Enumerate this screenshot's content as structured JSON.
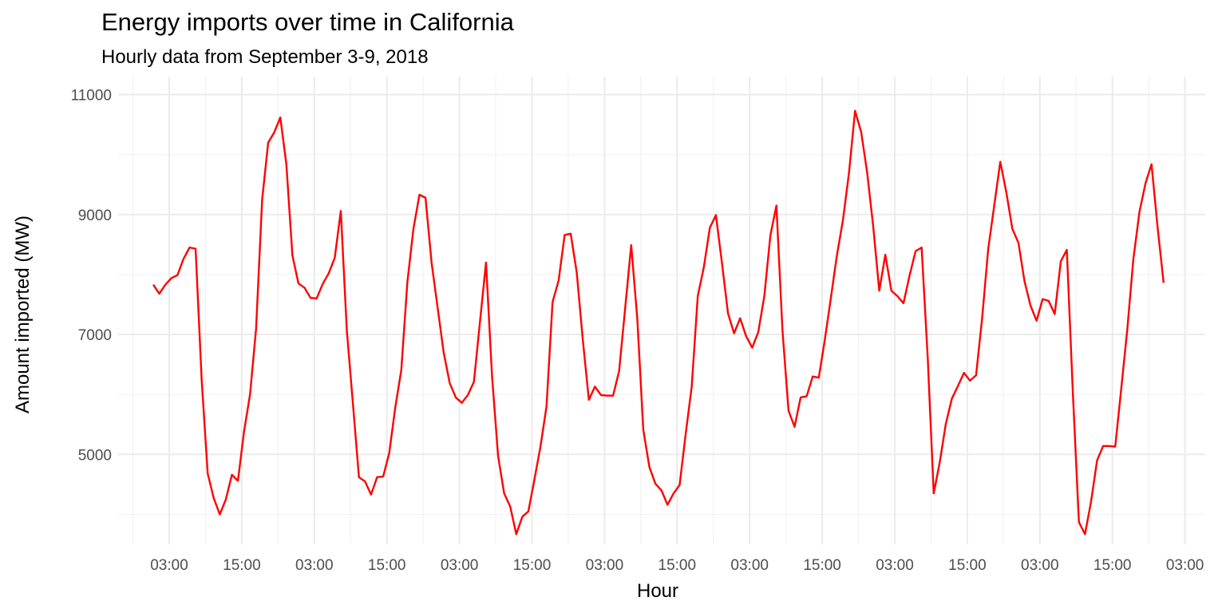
{
  "chart_data": {
    "type": "line",
    "title": "Energy imports over time in California",
    "subtitle": "Hourly data from September 3-9, 2018",
    "xlabel": "Hour",
    "ylabel": "Amount imported (MW)",
    "ylim": [
      3500,
      11300
    ],
    "y_ticks": [
      5000,
      7000,
      9000,
      11000
    ],
    "x_ticks": [
      "03:00",
      "15:00",
      "03:00",
      "15:00",
      "03:00",
      "15:00",
      "03:00",
      "15:00",
      "03:00",
      "15:00",
      "03:00",
      "15:00",
      "03:00",
      "15:00",
      "03:00"
    ],
    "grid": true,
    "legend": "none",
    "series": [
      {
        "color": "#ff0000",
        "values": [
          7830,
          7680,
          7830,
          7940,
          7990,
          8260,
          8450,
          8430,
          6250,
          4680,
          4270,
          4000,
          4250,
          4660,
          4560,
          5380,
          6000,
          7100,
          9250,
          10200,
          10370,
          10620,
          9840,
          8320,
          7850,
          7780,
          7610,
          7600,
          7840,
          8020,
          8280,
          9060,
          7060,
          5850,
          4620,
          4550,
          4330,
          4620,
          4630,
          5020,
          5780,
          6410,
          7870,
          8760,
          9330,
          9280,
          8200,
          7450,
          6700,
          6190,
          5950,
          5860,
          5990,
          6210,
          7210,
          8200,
          6300,
          4970,
          4350,
          4130,
          3670,
          3960,
          4050,
          4580,
          5130,
          5800,
          7540,
          7900,
          8660,
          8680,
          8030,
          6910,
          5910,
          6130,
          5990,
          5980,
          5980,
          6390,
          7440,
          8490,
          7270,
          5410,
          4790,
          4510,
          4400,
          4160,
          4350,
          4490,
          5340,
          6130,
          7640,
          8120,
          8780,
          8990,
          8190,
          7350,
          7020,
          7270,
          6970,
          6780,
          7040,
          7640,
          8650,
          9150,
          7070,
          5730,
          5460,
          5950,
          5970,
          6300,
          6280,
          6910,
          7610,
          8320,
          8910,
          9700,
          10730,
          10380,
          9700,
          8800,
          7730,
          8330,
          7730,
          7640,
          7520,
          7980,
          8390,
          8450,
          6630,
          4350,
          4870,
          5510,
          5930,
          6140,
          6360,
          6230,
          6320,
          7270,
          8420,
          9150,
          9880,
          9370,
          8760,
          8530,
          7890,
          7480,
          7230,
          7590,
          7560,
          7340,
          8220,
          8410,
          6020,
          3870,
          3670,
          4210,
          4900,
          5140,
          5140,
          5130,
          6100,
          7090,
          8260,
          9040,
          9520,
          9840,
          8790,
          7860
        ]
      }
    ]
  }
}
